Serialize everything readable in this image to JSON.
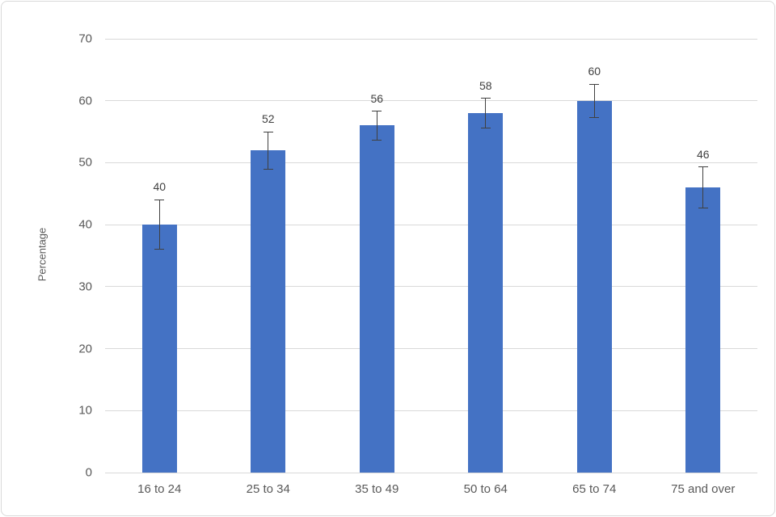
{
  "chart_data": {
    "type": "bar",
    "title": "",
    "xlabel": "",
    "ylabel": "Percentage",
    "categories": [
      "16 to 24",
      "25 to 34",
      "35 to 49",
      "50 to 64",
      "65 to 74",
      "75 and over"
    ],
    "values": [
      40,
      52,
      56,
      58,
      60,
      46
    ],
    "data_labels": [
      "40",
      "52",
      "56",
      "58",
      "60",
      "46"
    ],
    "error_bars": [
      4.0,
      3.0,
      2.3,
      2.4,
      2.7,
      3.3
    ],
    "ylim": [
      0,
      70
    ],
    "yticks": [
      0,
      10,
      20,
      30,
      40,
      50,
      60,
      70
    ],
    "grid": true,
    "legend_position": "none",
    "colors": {
      "bar": "#4472c4",
      "gridline": "#d9d9d9",
      "axis_text": "#595959",
      "data_label_text": "#404040",
      "error_bar": "#404040",
      "frame_border": "#d9d9d9",
      "background": "#ffffff"
    }
  }
}
